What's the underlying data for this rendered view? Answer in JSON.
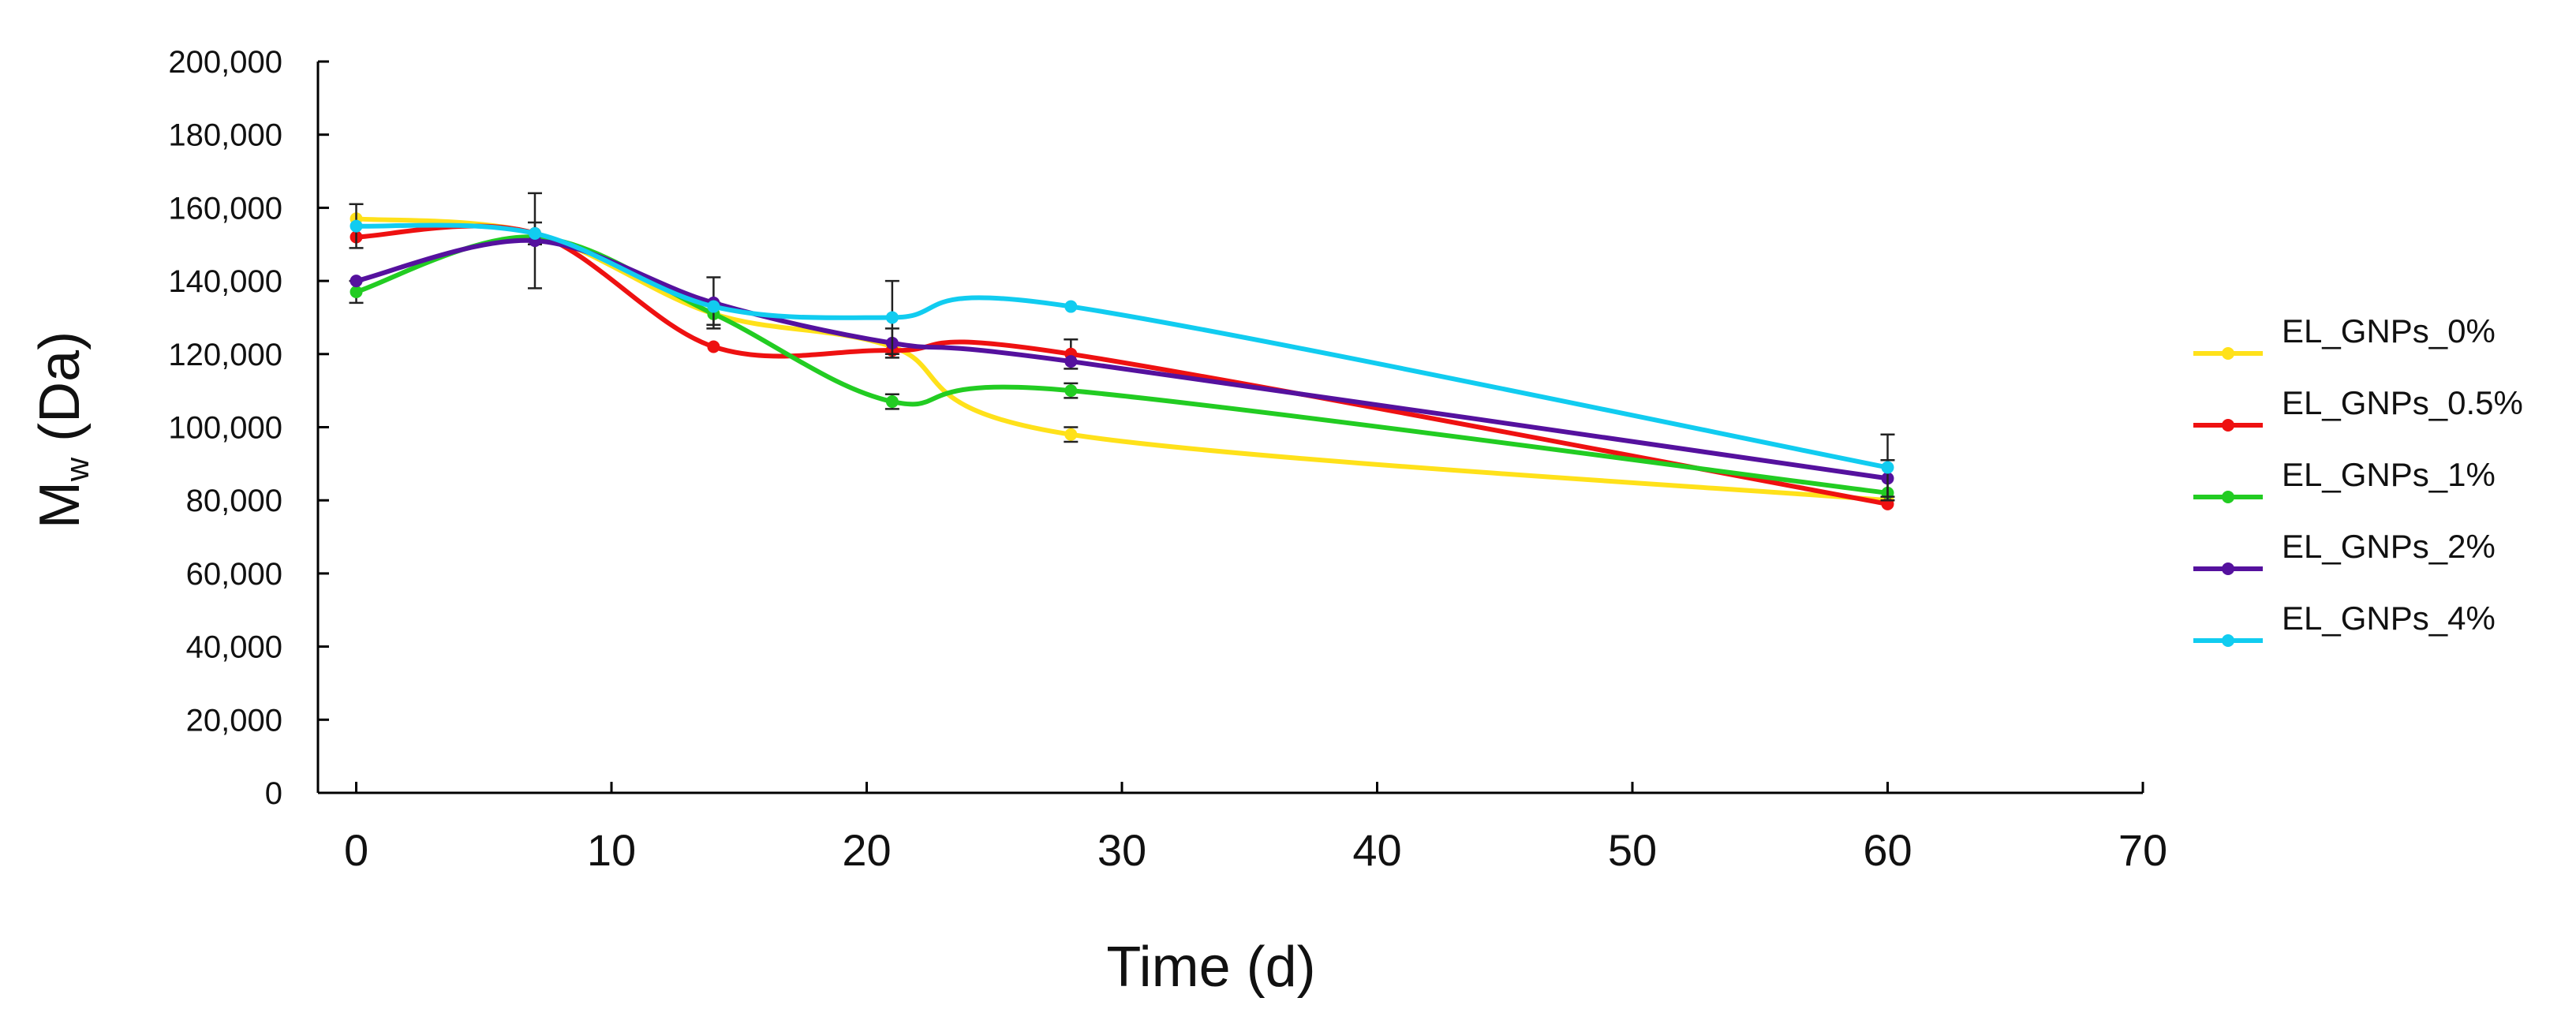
{
  "chart_data": {
    "type": "line",
    "title": "",
    "xlabel": "Time (d)",
    "ylabel_main": "M",
    "ylabel_sub": "w",
    "ylabel_unit": " (Da)",
    "xlim": [
      -1.5,
      70
    ],
    "ylim": [
      0,
      200000
    ],
    "x_ticks": [
      0,
      10,
      20,
      30,
      40,
      50,
      60,
      70
    ],
    "x_tick_labels": [
      "0",
      "10",
      "20",
      "30",
      "40",
      "50",
      "60",
      "70"
    ],
    "y_ticks": [
      0,
      20000,
      40000,
      60000,
      80000,
      100000,
      120000,
      140000,
      160000,
      180000,
      200000
    ],
    "y_tick_labels": [
      "0",
      "20,000",
      "40,000",
      "60,000",
      "80,000",
      "100,000",
      "120,000",
      "140,000",
      "160,000",
      "180,000",
      "200,000"
    ],
    "grid": false,
    "legend_position": "right",
    "x": [
      0,
      7,
      14,
      21,
      28,
      60
    ],
    "series": [
      {
        "name": "EL_GNPs_0%",
        "color": "#FFE11A",
        "values": [
          157000,
          153000,
          131000,
          122000,
          98000,
          80000
        ],
        "errors": [
          0,
          0,
          0,
          0,
          2000,
          0
        ]
      },
      {
        "name": "EL_GNPs_0.5%",
        "color": "#EE1111",
        "values": [
          152000,
          153000,
          122000,
          121000,
          120000,
          79000
        ],
        "errors": [
          0,
          3000,
          0,
          0,
          4000,
          0
        ]
      },
      {
        "name": "EL_GNPs_1%",
        "color": "#22CC22",
        "values": [
          137000,
          152000,
          131000,
          107000,
          110000,
          82000
        ],
        "errors": [
          3000,
          0,
          3000,
          2000,
          2000,
          0
        ]
      },
      {
        "name": "EL_GNPs_2%",
        "color": "#55119E",
        "values": [
          140000,
          151000,
          134000,
          123000,
          118000,
          86000
        ],
        "errors": [
          0,
          13000,
          7000,
          4000,
          0,
          5000
        ]
      },
      {
        "name": "EL_GNPs_4%",
        "color": "#11CCF0",
        "values": [
          155000,
          153000,
          133000,
          130000,
          133000,
          89000
        ],
        "errors": [
          6000,
          0,
          0,
          10000,
          0,
          9000
        ]
      }
    ]
  }
}
